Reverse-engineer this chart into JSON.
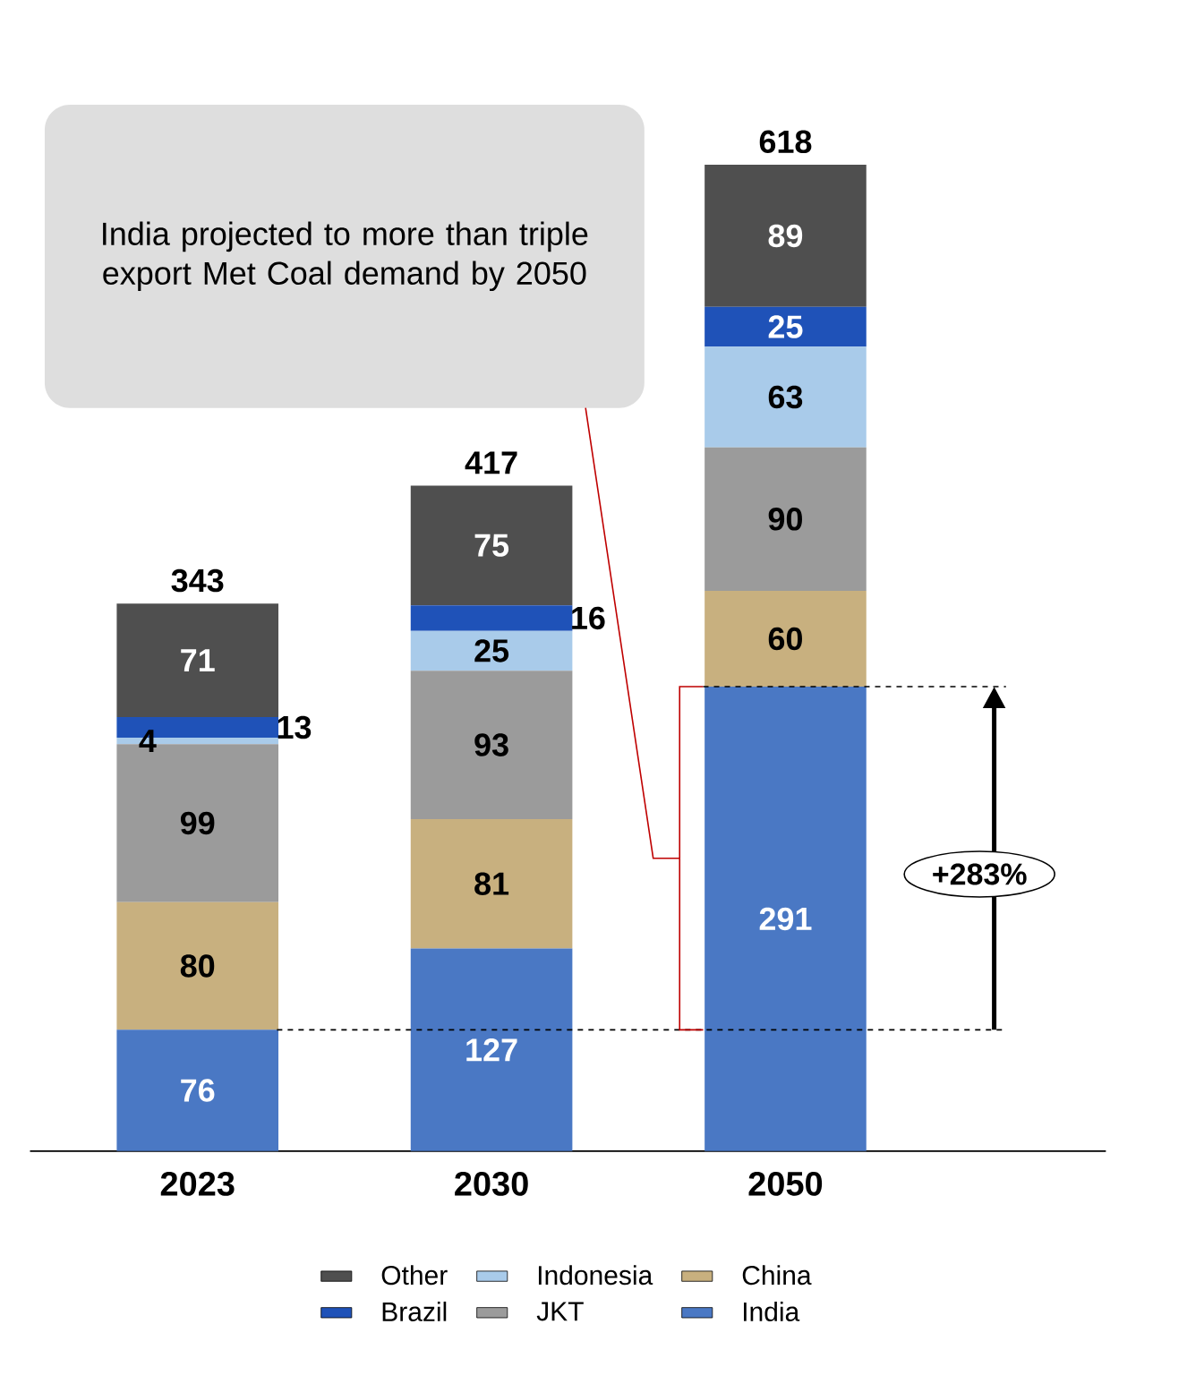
{
  "chart_data": {
    "type": "bar",
    "stacked": true,
    "categories": [
      "2023",
      "2030",
      "2050"
    ],
    "series": [
      {
        "name": "India",
        "color": "#4a78c4",
        "values": [
          76,
          127,
          291
        ]
      },
      {
        "name": "China",
        "color": "#c8b07f",
        "values": [
          80,
          81,
          60
        ]
      },
      {
        "name": "JKT",
        "color": "#9b9b9b",
        "values": [
          99,
          93,
          90
        ]
      },
      {
        "name": "Indonesia",
        "color": "#a9cbea",
        "values": [
          4,
          25,
          63
        ]
      },
      {
        "name": "Brazil",
        "color": "#1f52b8",
        "values": [
          13,
          16,
          25
        ]
      },
      {
        "name": "Other",
        "color": "#4f4f4f",
        "values": [
          71,
          75,
          89
        ]
      }
    ],
    "data_labels": true,
    "totals": [
      "343",
      "417",
      "618"
    ],
    "legend": "bottom",
    "ref_lines": [
      {
        "axis": "y",
        "value": 76,
        "line_style": "dashed",
        "color": "#000000"
      },
      {
        "axis": "y",
        "value": 291,
        "line_style": "dashed",
        "color": "#000000"
      }
    ],
    "annotations": [
      "India projected to more than triple export Met Coal demand by 2050",
      "+283%"
    ]
  }
}
